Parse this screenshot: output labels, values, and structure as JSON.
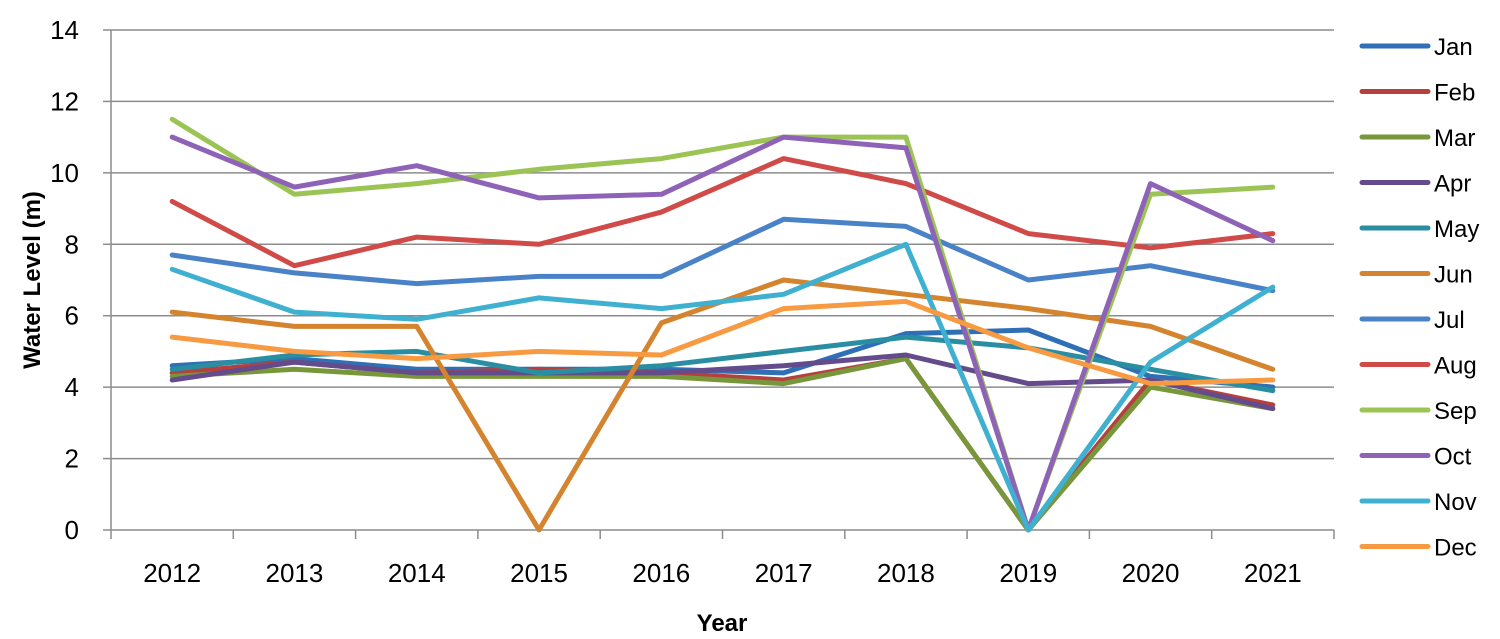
{
  "chart_data": {
    "type": "line",
    "title": "",
    "xlabel": "Year",
    "ylabel": "Water Level (m)",
    "categories": [
      "2012",
      "2013",
      "2014",
      "2015",
      "2016",
      "2017",
      "2018",
      "2019",
      "2020",
      "2021"
    ],
    "ylim": [
      0,
      14
    ],
    "yticks": [
      0,
      2,
      4,
      6,
      8,
      10,
      12,
      14
    ],
    "grid": true,
    "legend_position": "right",
    "series": [
      {
        "name": "Jan",
        "color": "#2e6fb5",
        "values": [
          4.6,
          4.8,
          4.5,
          4.5,
          4.5,
          4.4,
          5.5,
          5.6,
          4.3,
          4.0
        ]
      },
      {
        "name": "Feb",
        "color": "#b5413f",
        "values": [
          4.4,
          4.7,
          4.4,
          4.5,
          4.4,
          4.2,
          4.8,
          0.0,
          4.2,
          3.5
        ]
      },
      {
        "name": "Mar",
        "color": "#77973a",
        "values": [
          4.3,
          4.5,
          4.3,
          4.3,
          4.3,
          4.1,
          4.8,
          0.0,
          4.0,
          3.4
        ]
      },
      {
        "name": "Apr",
        "color": "#634b8c",
        "values": [
          4.2,
          4.7,
          4.4,
          4.4,
          4.4,
          4.6,
          4.9,
          4.1,
          4.2,
          3.4
        ]
      },
      {
        "name": "May",
        "color": "#2a8ea3",
        "values": [
          4.5,
          4.9,
          5.0,
          4.4,
          4.6,
          5.0,
          5.4,
          5.1,
          4.5,
          3.9
        ]
      },
      {
        "name": "Jun",
        "color": "#d4842f",
        "values": [
          6.1,
          5.7,
          5.7,
          0.0,
          5.8,
          7.0,
          6.6,
          6.2,
          5.7,
          4.5
        ]
      },
      {
        "name": "Jul",
        "color": "#4a82c8",
        "values": [
          7.7,
          7.2,
          6.9,
          7.1,
          7.1,
          8.7,
          8.5,
          7.0,
          7.4,
          6.7
        ]
      },
      {
        "name": "Aug",
        "color": "#d04a48",
        "values": [
          9.2,
          7.4,
          8.2,
          8.0,
          8.9,
          10.4,
          9.7,
          8.3,
          7.9,
          8.3
        ]
      },
      {
        "name": "Sep",
        "color": "#9bc454",
        "values": [
          11.5,
          9.4,
          9.7,
          10.1,
          10.4,
          11.0,
          11.0,
          0.0,
          9.4,
          9.6
        ]
      },
      {
        "name": "Oct",
        "color": "#8e62b6",
        "values": [
          11.0,
          9.6,
          10.2,
          9.3,
          9.4,
          11.0,
          10.7,
          0.0,
          9.7,
          8.1
        ]
      },
      {
        "name": "Nov",
        "color": "#3fb0d0",
        "values": [
          7.3,
          6.1,
          5.9,
          6.5,
          6.2,
          6.6,
          8.0,
          0.0,
          4.7,
          6.8
        ]
      },
      {
        "name": "Dec",
        "color": "#f79a42",
        "values": [
          5.4,
          5.0,
          4.8,
          5.0,
          4.9,
          6.2,
          6.4,
          5.1,
          4.1,
          4.2
        ]
      }
    ]
  }
}
